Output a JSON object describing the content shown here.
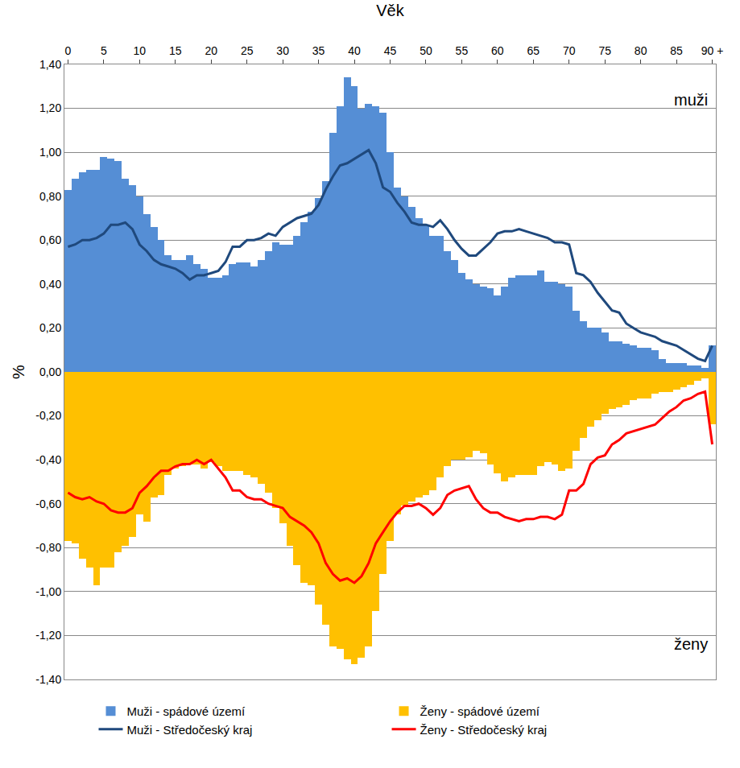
{
  "chart_data": {
    "type": "bar",
    "x_label": "Věk",
    "y_label": "%",
    "categories": [
      "0",
      null,
      null,
      null,
      null,
      "5",
      null,
      null,
      null,
      null,
      "10",
      null,
      null,
      null,
      null,
      "15",
      null,
      null,
      null,
      null,
      "20",
      null,
      null,
      null,
      null,
      "25",
      null,
      null,
      null,
      null,
      "30",
      null,
      null,
      null,
      null,
      "35",
      null,
      null,
      null,
      null,
      "40",
      null,
      null,
      null,
      null,
      "45",
      null,
      null,
      null,
      null,
      "50",
      null,
      null,
      null,
      null,
      "55",
      null,
      null,
      null,
      null,
      "60",
      null,
      null,
      null,
      null,
      "65",
      null,
      null,
      null,
      null,
      "70",
      null,
      null,
      null,
      null,
      "75",
      null,
      null,
      null,
      null,
      "80",
      null,
      null,
      null,
      null,
      "85",
      null,
      null,
      null,
      null,
      "90 +"
    ],
    "series": [
      {
        "name": "Muži - spádové území",
        "type": "bar",
        "color": "#558ed5",
        "values": [
          0.83,
          0.88,
          0.91,
          0.92,
          0.92,
          0.98,
          0.97,
          0.96,
          0.88,
          0.85,
          0.8,
          0.72,
          0.66,
          0.6,
          0.53,
          0.51,
          0.51,
          0.53,
          0.49,
          0.47,
          0.43,
          0.43,
          0.44,
          0.49,
          0.5,
          0.5,
          0.48,
          0.51,
          0.55,
          0.59,
          0.58,
          0.58,
          0.62,
          0.68,
          0.73,
          0.79,
          0.87,
          1.09,
          1.21,
          1.34,
          1.3,
          1.2,
          1.22,
          1.21,
          1.18,
          1.0,
          0.84,
          0.8,
          0.75,
          0.7,
          0.67,
          0.62,
          0.62,
          0.55,
          0.51,
          0.45,
          0.42,
          0.4,
          0.39,
          0.38,
          0.35,
          0.39,
          0.43,
          0.44,
          0.44,
          0.44,
          0.46,
          0.41,
          0.41,
          0.4,
          0.39,
          0.28,
          0.23,
          0.2,
          0.2,
          0.18,
          0.14,
          0.14,
          0.13,
          0.12,
          0.11,
          0.11,
          0.1,
          0.06,
          0.04,
          0.04,
          0.04,
          0.03,
          0.03,
          0.02,
          0.12
        ]
      },
      {
        "name": "Ženy - spádové území",
        "type": "bar",
        "color": "#ffc000",
        "values": [
          -0.77,
          -0.78,
          -0.85,
          -0.89,
          -0.97,
          -0.89,
          -0.89,
          -0.82,
          -0.79,
          -0.75,
          -0.65,
          -0.68,
          -0.57,
          -0.56,
          -0.47,
          -0.44,
          -0.43,
          -0.42,
          -0.42,
          -0.44,
          -0.41,
          -0.43,
          -0.45,
          -0.45,
          -0.45,
          -0.47,
          -0.48,
          -0.51,
          -0.55,
          -0.62,
          -0.69,
          -0.79,
          -0.88,
          -0.96,
          -0.97,
          -1.06,
          -1.15,
          -1.25,
          -1.26,
          -1.31,
          -1.33,
          -1.3,
          -1.25,
          -1.09,
          -0.92,
          -0.77,
          -0.65,
          -0.61,
          -0.59,
          -0.57,
          -0.56,
          -0.54,
          -0.48,
          -0.43,
          -0.4,
          -0.4,
          -0.39,
          -0.36,
          -0.37,
          -0.42,
          -0.46,
          -0.5,
          -0.48,
          -0.47,
          -0.47,
          -0.47,
          -0.43,
          -0.41,
          -0.42,
          -0.45,
          -0.44,
          -0.36,
          -0.3,
          -0.25,
          -0.22,
          -0.19,
          -0.17,
          -0.16,
          -0.15,
          -0.13,
          -0.12,
          -0.12,
          -0.1,
          -0.09,
          -0.09,
          -0.08,
          -0.07,
          -0.06,
          -0.04,
          -0.03,
          -0.24
        ]
      },
      {
        "name": "Muži - Středočeský kraj",
        "type": "line",
        "color": "#1f497d",
        "values": [
          0.57,
          0.58,
          0.6,
          0.6,
          0.61,
          0.63,
          0.67,
          0.67,
          0.68,
          0.65,
          0.58,
          0.55,
          0.51,
          0.49,
          0.48,
          0.47,
          0.45,
          0.42,
          0.44,
          0.44,
          0.45,
          0.46,
          0.5,
          0.57,
          0.57,
          0.6,
          0.6,
          0.61,
          0.63,
          0.62,
          0.66,
          0.68,
          0.7,
          0.71,
          0.72,
          0.76,
          0.83,
          0.89,
          0.94,
          0.95,
          0.97,
          0.99,
          1.01,
          0.95,
          0.84,
          0.82,
          0.77,
          0.73,
          0.68,
          0.67,
          0.67,
          0.66,
          0.69,
          0.65,
          0.6,
          0.56,
          0.53,
          0.53,
          0.56,
          0.59,
          0.63,
          0.64,
          0.64,
          0.65,
          0.64,
          0.63,
          0.62,
          0.61,
          0.59,
          0.59,
          0.58,
          0.45,
          0.44,
          0.41,
          0.36,
          0.32,
          0.28,
          0.27,
          0.22,
          0.2,
          0.18,
          0.17,
          0.16,
          0.14,
          0.13,
          0.12,
          0.1,
          0.08,
          0.06,
          0.05,
          0.12
        ]
      },
      {
        "name": "Ženy - Středočeský kraj",
        "type": "line",
        "color": "#ff0000",
        "values": [
          -0.55,
          -0.57,
          -0.58,
          -0.57,
          -0.59,
          -0.6,
          -0.63,
          -0.64,
          -0.64,
          -0.62,
          -0.55,
          -0.52,
          -0.48,
          -0.45,
          -0.45,
          -0.43,
          -0.42,
          -0.42,
          -0.4,
          -0.42,
          -0.4,
          -0.44,
          -0.48,
          -0.54,
          -0.54,
          -0.57,
          -0.58,
          -0.58,
          -0.6,
          -0.61,
          -0.62,
          -0.66,
          -0.68,
          -0.7,
          -0.73,
          -0.78,
          -0.87,
          -0.92,
          -0.95,
          -0.94,
          -0.96,
          -0.93,
          -0.87,
          -0.78,
          -0.73,
          -0.68,
          -0.64,
          -0.61,
          -0.61,
          -0.6,
          -0.62,
          -0.65,
          -0.62,
          -0.56,
          -0.54,
          -0.53,
          -0.52,
          -0.58,
          -0.62,
          -0.64,
          -0.64,
          -0.66,
          -0.67,
          -0.68,
          -0.67,
          -0.67,
          -0.66,
          -0.66,
          -0.67,
          -0.65,
          -0.54,
          -0.54,
          -0.51,
          -0.42,
          -0.39,
          -0.38,
          -0.33,
          -0.31,
          -0.28,
          -0.27,
          -0.26,
          -0.25,
          -0.24,
          -0.21,
          -0.18,
          -0.16,
          -0.13,
          -0.12,
          -0.1,
          -0.09,
          -0.33
        ]
      }
    ],
    "ylim": [
      -1.4,
      1.4
    ],
    "yticks": [
      {
        "value": -1.4,
        "label": "-1,40"
      },
      {
        "value": -1.2,
        "label": "-1,20"
      },
      {
        "value": -1.0,
        "label": "-1,00"
      },
      {
        "value": -0.8,
        "label": "-0,80"
      },
      {
        "value": -0.6,
        "label": "-0,60"
      },
      {
        "value": -0.4,
        "label": "-0,40"
      },
      {
        "value": -0.2,
        "label": "-0,20"
      },
      {
        "value": 0,
        "label": "0,00"
      },
      {
        "value": 0.2,
        "label": "0,20"
      },
      {
        "value": 0.4,
        "label": "0,40"
      },
      {
        "value": 0.6,
        "label": "0,60"
      },
      {
        "value": 0.8,
        "label": "0,80"
      },
      {
        "value": 1.0,
        "label": "1,00"
      },
      {
        "value": 1.2,
        "label": "1,20"
      },
      {
        "value": 1.4,
        "label": "1,40"
      }
    ],
    "annotations": [
      {
        "text": "muži"
      },
      {
        "text": "ženy"
      }
    ],
    "grid": true,
    "legend": "bottom"
  }
}
